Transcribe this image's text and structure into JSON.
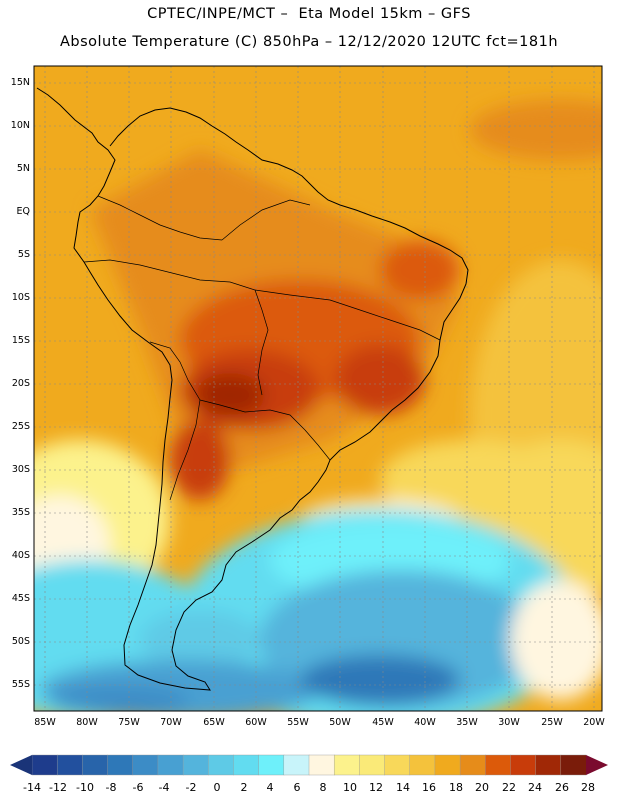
{
  "title": {
    "line1": "CPTEC/INPE/MCT –  Eta Model 15km – GFS",
    "line2": "Absolute Temperature (C) 850hPa – 12/12/2020 12UTC fct=181h"
  },
  "map": {
    "region": "South America",
    "field": "Absolute Temperature 850hPa",
    "units": "C",
    "lat_labels": [
      "15N",
      "10N",
      "5N",
      "EQ",
      "5S",
      "10S",
      "15S",
      "20S",
      "25S",
      "30S",
      "35S",
      "40S",
      "45S",
      "50S",
      "55S"
    ],
    "lat_values": [
      15,
      10,
      5,
      0,
      -5,
      -10,
      -15,
      -20,
      -25,
      -30,
      -35,
      -40,
      -45,
      -50,
      -55
    ],
    "lon_labels": [
      "85W",
      "80W",
      "75W",
      "70W",
      "65W",
      "60W",
      "55W",
      "50W",
      "45W",
      "40W",
      "35W",
      "30W",
      "25W",
      "20W"
    ],
    "lon_values": [
      -85,
      -80,
      -75,
      -70,
      -65,
      -60,
      -55,
      -50,
      -45,
      -40,
      -35,
      -30,
      -25,
      -20
    ],
    "lon_range": [
      -86,
      -20
    ],
    "lat_range": [
      -58,
      17
    ]
  },
  "colorbar": {
    "labels": [
      "-14",
      "-12",
      "-10",
      "-8",
      "-6",
      "-4",
      "-2",
      "0",
      "2",
      "4",
      "6",
      "8",
      "10",
      "12",
      "14",
      "16",
      "18",
      "20",
      "22",
      "24",
      "26",
      "28"
    ],
    "colors": [
      "#1e3c8c",
      "#22509e",
      "#2864aa",
      "#2e78b8",
      "#3c8cc6",
      "#48a0d2",
      "#54b4dc",
      "#5ecae6",
      "#62dcf0",
      "#6ef0fa",
      "#c8f4fa",
      "#fff6e0",
      "#fcf28c",
      "#faea78",
      "#f8d85a",
      "#f4c23c",
      "#f0aa1e",
      "#e68c1a",
      "#dc5a0a",
      "#c83c0a",
      "#a02806",
      "#7a1c0a"
    ],
    "under_color": "#1a3478",
    "over_color": "#7a0a2e"
  }
}
